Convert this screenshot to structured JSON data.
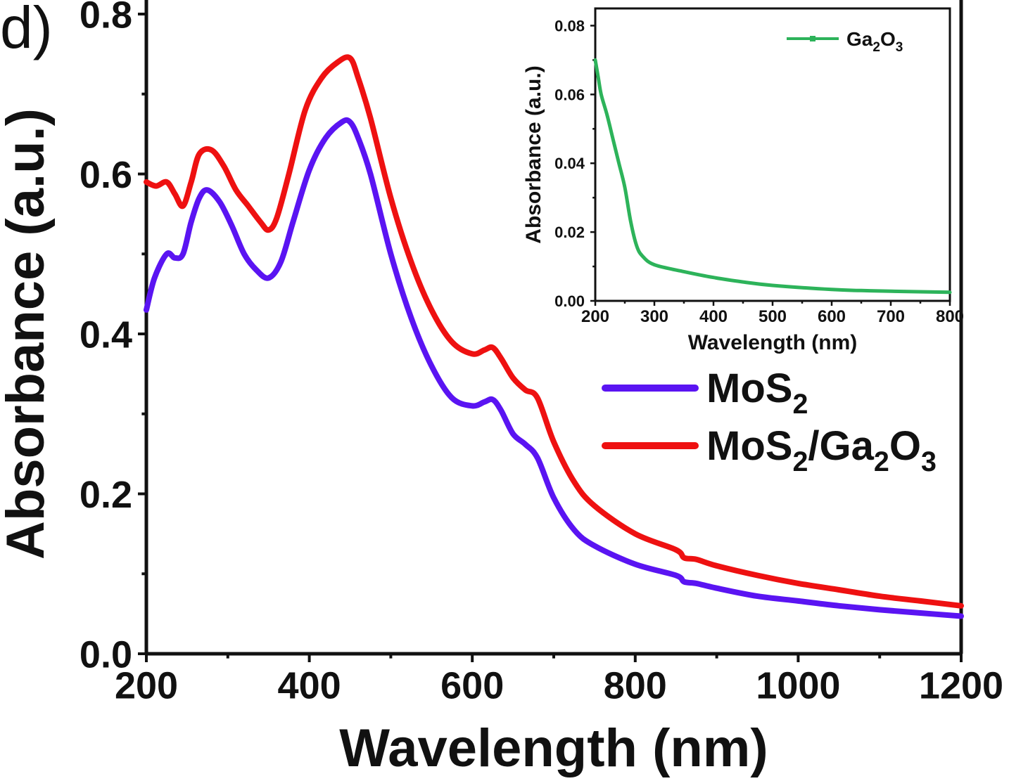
{
  "panel_label": "d)",
  "chart_data": [
    {
      "type": "line",
      "xlabel": "Wavelength (nm)",
      "ylabel": "Absorbance (a.u.)",
      "xlim": [
        200,
        1200
      ],
      "ylim": [
        0,
        0.8
      ],
      "xticks": [
        200,
        400,
        600,
        800,
        1000,
        1200
      ],
      "xtick_labels": [
        "200",
        "400",
        "600",
        "800",
        "1000",
        "1200"
      ],
      "yticks": [
        0,
        0.2,
        0.4,
        0.6,
        0.8
      ],
      "ytick_labels": [
        "0.0",
        "0.2",
        "0.4",
        "0.6",
        "0.8"
      ],
      "grid": false,
      "legend_position": "right",
      "series": [
        {
          "name": "MoS2",
          "legend_label": {
            "base": "MoS",
            "sub": "2"
          },
          "color": "#5a14f2",
          "x": [
            200,
            210,
            225,
            235,
            245,
            255,
            265,
            275,
            290,
            305,
            320,
            335,
            350,
            365,
            380,
            400,
            420,
            440,
            450,
            460,
            475,
            500,
            525,
            550,
            575,
            600,
            615,
            625,
            635,
            650,
            665,
            680,
            700,
            725,
            750,
            800,
            850,
            860,
            875,
            900,
            950,
            1000,
            1050,
            1100,
            1150,
            1200
          ],
          "y": [
            0.43,
            0.47,
            0.5,
            0.495,
            0.5,
            0.54,
            0.57,
            0.58,
            0.565,
            0.535,
            0.5,
            0.48,
            0.47,
            0.49,
            0.54,
            0.605,
            0.645,
            0.665,
            0.665,
            0.645,
            0.6,
            0.5,
            0.42,
            0.36,
            0.32,
            0.31,
            0.315,
            0.318,
            0.305,
            0.275,
            0.262,
            0.245,
            0.195,
            0.155,
            0.135,
            0.112,
            0.098,
            0.09,
            0.088,
            0.082,
            0.072,
            0.066,
            0.06,
            0.055,
            0.051,
            0.047
          ]
        },
        {
          "name": "MoS2/Ga2O3",
          "legend_label": {
            "base": "MoS",
            "sub": "2",
            "mid": "/Ga",
            "sub2": "2",
            "mid2": "O",
            "sub3": "3"
          },
          "color": "#ee1111",
          "x": [
            200,
            212,
            225,
            235,
            245,
            255,
            265,
            280,
            295,
            310,
            325,
            340,
            350,
            360,
            375,
            395,
            415,
            435,
            450,
            460,
            475,
            500,
            525,
            550,
            575,
            600,
            615,
            625,
            635,
            650,
            665,
            680,
            700,
            725,
            750,
            800,
            850,
            860,
            875,
            900,
            950,
            1000,
            1050,
            1100,
            1150,
            1200
          ],
          "y": [
            0.59,
            0.585,
            0.59,
            0.575,
            0.56,
            0.59,
            0.625,
            0.63,
            0.61,
            0.58,
            0.56,
            0.54,
            0.53,
            0.545,
            0.6,
            0.68,
            0.72,
            0.74,
            0.745,
            0.72,
            0.67,
            0.57,
            0.49,
            0.43,
            0.39,
            0.375,
            0.38,
            0.383,
            0.37,
            0.345,
            0.33,
            0.32,
            0.265,
            0.215,
            0.185,
            0.15,
            0.13,
            0.12,
            0.118,
            0.11,
            0.098,
            0.088,
            0.08,
            0.072,
            0.066,
            0.06
          ]
        }
      ]
    },
    {
      "type": "line",
      "xlabel": "Wavelength (nm)",
      "ylabel": "Absorbance (a.u.)",
      "xlim": [
        200,
        800
      ],
      "ylim": [
        0,
        0.085
      ],
      "xticks": [
        200,
        300,
        400,
        500,
        600,
        700,
        800
      ],
      "xtick_labels": [
        "200",
        "300",
        "400",
        "500",
        "600",
        "700",
        "800"
      ],
      "yticks": [
        0,
        0.02,
        0.04,
        0.06,
        0.08
      ],
      "ytick_labels": [
        "0.00",
        "0.02",
        "0.04",
        "0.06",
        "0.08"
      ],
      "grid": false,
      "legend_position": "top-right",
      "series": [
        {
          "name": "Ga2O3",
          "legend_label": {
            "base": "Ga",
            "sub": "2",
            "mid": "O",
            "sub2": "3"
          },
          "color": "#2db35a",
          "x": [
            200,
            205,
            210,
            220,
            230,
            240,
            250,
            260,
            270,
            280,
            300,
            350,
            400,
            450,
            500,
            600,
            650,
            700,
            800
          ],
          "y": [
            0.07,
            0.065,
            0.06,
            0.054,
            0.047,
            0.04,
            0.033,
            0.023,
            0.016,
            0.013,
            0.0105,
            0.0085,
            0.0068,
            0.0055,
            0.0045,
            0.0033,
            0.003,
            0.0028,
            0.0025
          ]
        }
      ]
    }
  ]
}
